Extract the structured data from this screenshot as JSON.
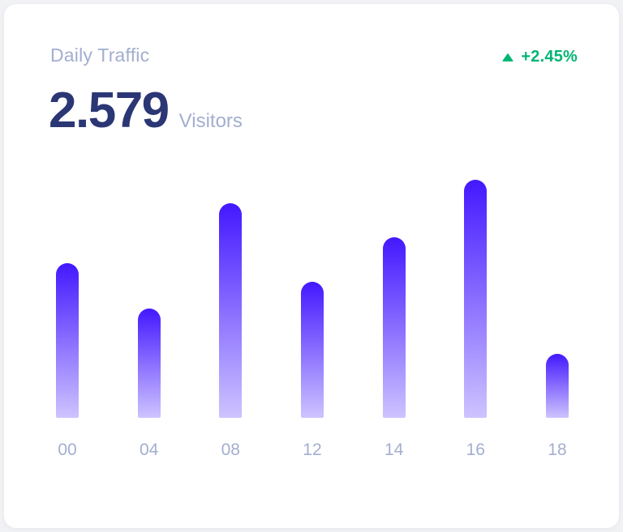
{
  "card": {
    "title": "Daily Traffic",
    "metric": {
      "value": "2.579",
      "unit": "Visitors"
    },
    "growth": {
      "label": "+2.45%",
      "direction": "up",
      "icon": "arrow-up-icon"
    }
  },
  "colors": {
    "page_background": "#F1F2F4",
    "card_background": "#FFFFFF",
    "title_muted": "#A3AED0",
    "metric_navy": "#2B3674",
    "growth_green": "#01B574",
    "axis_label": "#A3AED0",
    "bar_gradient_top": "#4318FF",
    "bar_gradient_bottom": "rgba(67,24,255,0.26)"
  },
  "chart_data": {
    "type": "bar",
    "title": "Daily Traffic",
    "categories": [
      "00",
      "04",
      "08",
      "12",
      "14",
      "16",
      "18"
    ],
    "values": [
      65,
      46,
      90,
      57,
      76,
      100,
      27
    ],
    "ylim": [
      0,
      100
    ],
    "xlabel": "",
    "ylabel": "",
    "grid": false,
    "legend": false,
    "y_axis_visible": false,
    "bar_shape": "rounded-top",
    "bar_fill": "vertical-gradient"
  }
}
